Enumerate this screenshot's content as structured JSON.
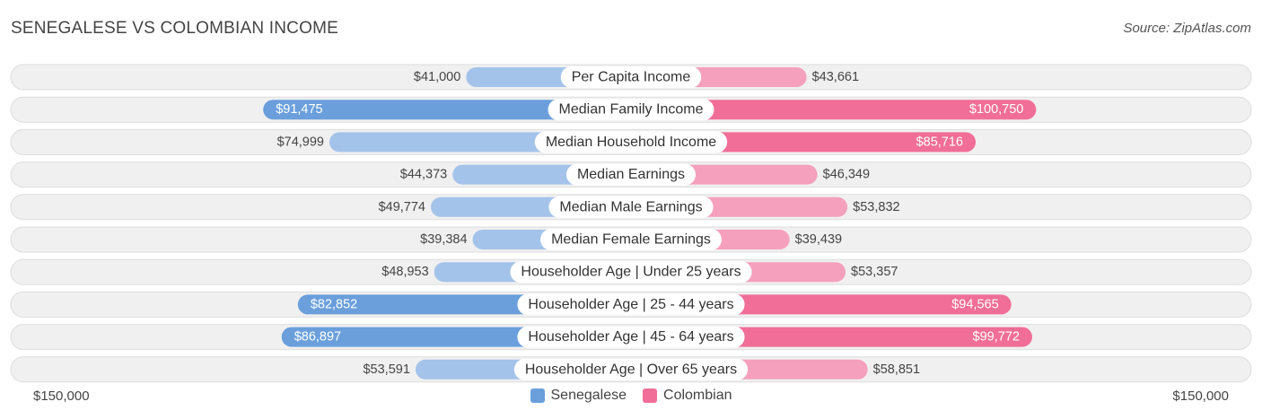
{
  "header": {
    "title": "SENEGALESE VS COLOMBIAN INCOME",
    "source": "Source: ZipAtlas.com"
  },
  "colors": {
    "senegalese_light": "#a4c3ea",
    "senegalese_dark": "#6a9fdc",
    "colombian_light": "#f5a0bc",
    "colombian_dark": "#f06e97",
    "row_bg": "#f0f0f0",
    "row_border": "#dddddd"
  },
  "chart_data": {
    "type": "bar",
    "orientation": "horizontal-diverging",
    "axis_max": 150000,
    "axis_labels": {
      "left": "$150,000",
      "right": "$150,000"
    },
    "legend": [
      "Senegalese",
      "Colombian"
    ],
    "categories": [
      "Per Capita Income",
      "Median Family Income",
      "Median Household Income",
      "Median Earnings",
      "Median Male Earnings",
      "Median Female Earnings",
      "Householder Age | Under 25 years",
      "Householder Age | 25 - 44 years",
      "Householder Age | 45 - 64 years",
      "Householder Age | Over 65 years"
    ],
    "series": [
      {
        "name": "Senegalese",
        "values": [
          41000,
          91475,
          74999,
          44373,
          49774,
          39384,
          48953,
          82852,
          86897,
          53591
        ],
        "labels": [
          "$41,000",
          "$91,475",
          "$74,999",
          "$44,373",
          "$49,774",
          "$39,384",
          "$48,953",
          "$82,852",
          "$86,897",
          "$53,591"
        ]
      },
      {
        "name": "Colombian",
        "values": [
          43661,
          100750,
          85716,
          46349,
          53832,
          39439,
          53357,
          94565,
          99772,
          58851
        ],
        "labels": [
          "$43,661",
          "$100,750",
          "$85,716",
          "$46,349",
          "$53,832",
          "$39,439",
          "$53,357",
          "$94,565",
          "$99,772",
          "$58,851"
        ]
      }
    ]
  }
}
